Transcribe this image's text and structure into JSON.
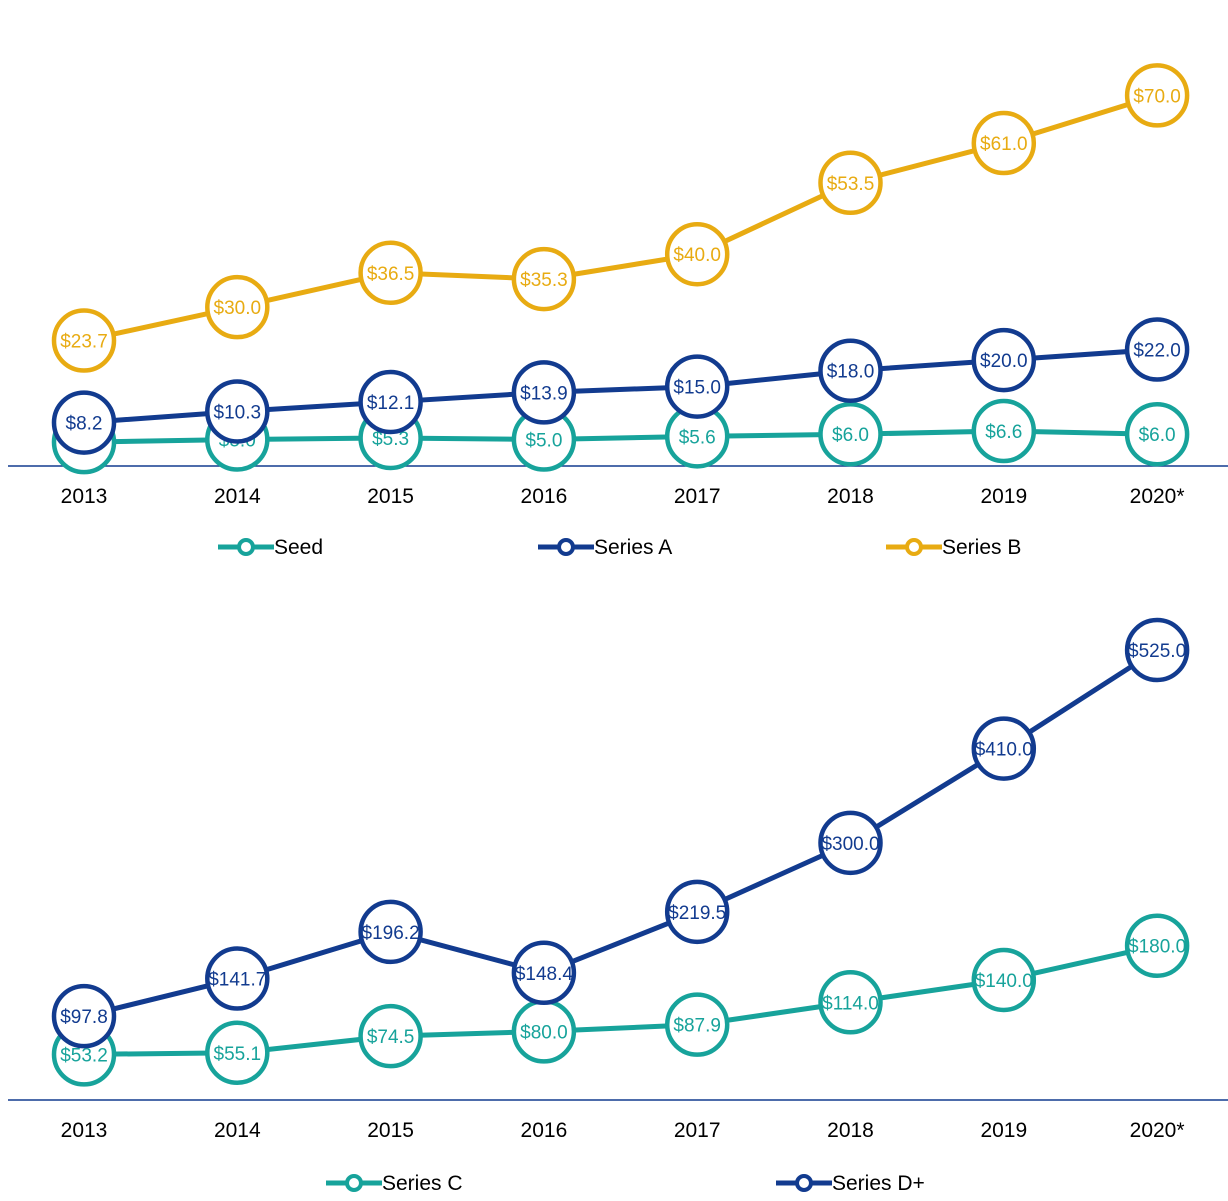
{
  "chart_data": [
    {
      "type": "line",
      "categories": [
        "2013",
        "2014",
        "2015",
        "2016",
        "2017",
        "2018",
        "2019",
        "2020*"
      ],
      "ylim": [
        0,
        85
      ],
      "grid": false,
      "legend_position": "bottom",
      "series": [
        {
          "name": "Seed",
          "color": "#17a39b",
          "values": [
            4.5,
            5.0,
            5.3,
            5.0,
            5.6,
            6.0,
            6.6,
            6.0
          ],
          "labels": [
            "$4.5",
            "$5.0",
            "$5.3",
            "$5.0",
            "$5.6",
            "$6.0",
            "$6.6",
            "$6.0"
          ]
        },
        {
          "name": "Series A",
          "color": "#123b8f",
          "values": [
            8.2,
            10.3,
            12.1,
            13.9,
            15.0,
            18.0,
            20.0,
            22.0
          ],
          "labels": [
            "$8.2",
            "$10.3",
            "$12.1",
            "$13.9",
            "$15.0",
            "$18.0",
            "$20.0",
            "$22.0"
          ]
        },
        {
          "name": "Series B",
          "color": "#e8ab12",
          "values": [
            23.7,
            30.0,
            36.5,
            35.3,
            40.0,
            53.5,
            61.0,
            70.0
          ],
          "labels": [
            "$23.7",
            "$30.0",
            "$36.5",
            "$35.3",
            "$40.0",
            "$53.5",
            "$61.0",
            "$70.0"
          ]
        }
      ]
    },
    {
      "type": "line",
      "categories": [
        "2013",
        "2014",
        "2015",
        "2016",
        "2017",
        "2018",
        "2019",
        "2020*"
      ],
      "ylim": [
        0,
        560
      ],
      "grid": false,
      "legend_position": "bottom",
      "series": [
        {
          "name": "Series C",
          "color": "#17a39b",
          "values": [
            53.2,
            55.1,
            74.5,
            80.0,
            87.9,
            114.0,
            140.0,
            180.0
          ],
          "labels": [
            "$53.2",
            "$55.1",
            "$74.5",
            "$80.0",
            "$87.9",
            "$114.0",
            "$140.0",
            "$180.0"
          ]
        },
        {
          "name": "Series D+",
          "color": "#123b8f",
          "values": [
            97.8,
            141.7,
            196.2,
            148.4,
            219.5,
            300.0,
            410.0,
            525.0
          ],
          "labels": [
            "$97.8",
            "$141.7",
            "$196.2",
            "$148.4",
            "$219.5",
            "$300.0",
            "$410.0",
            "$525.0"
          ]
        }
      ]
    }
  ]
}
